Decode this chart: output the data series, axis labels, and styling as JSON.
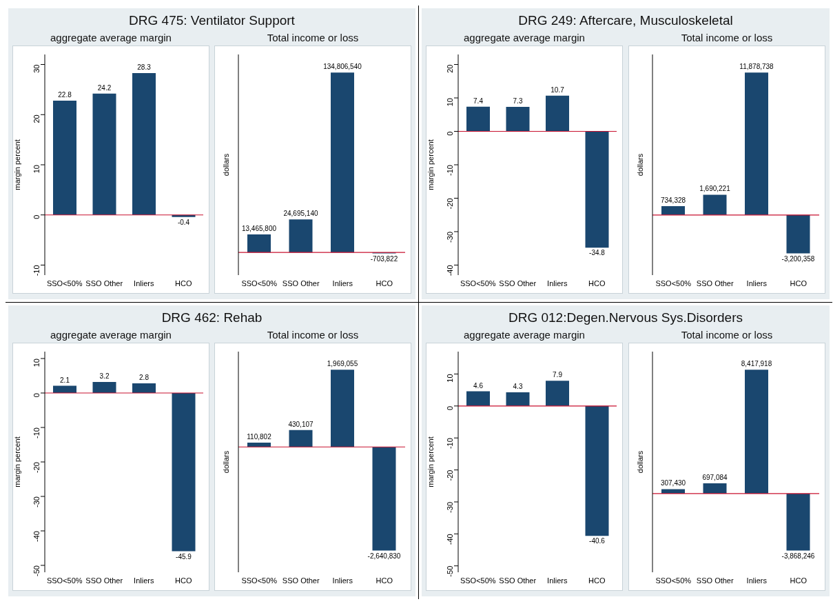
{
  "chart_data": [
    {
      "type": "bar",
      "title": "DRG 475: Ventilator Support",
      "subtitle": "aggregate average margin",
      "ylabel": "margin percent",
      "categories": [
        "SSO<50%",
        "SSO Other",
        "Inliers",
        "HCO"
      ],
      "values": [
        22.8,
        24.2,
        28.3,
        -0.4
      ],
      "color": "#1a476f",
      "ylim": [
        -12,
        32
      ],
      "yticks": [
        -10,
        0,
        10,
        20,
        30
      ],
      "data_labels": true,
      "ref_lines": [
        {
          "axis": "y",
          "value": 0,
          "color": "#c8102e"
        }
      ]
    },
    {
      "type": "bar",
      "title": "Total income or loss",
      "ylabel": "dollars",
      "categories": [
        "SSO<50%",
        "SSO Other",
        "Inliers",
        "HCO"
      ],
      "values": [
        13465800,
        24695140,
        134806540,
        -703822
      ],
      "value_labels": [
        "13,465,800",
        "24,695,140",
        "134,806,540",
        "-703,822"
      ],
      "color": "#1a476f",
      "tick_labels": "x",
      "ref_lines": [
        {
          "axis": "y",
          "value": 0,
          "color": "#c8102e"
        }
      ]
    },
    {
      "type": "bar",
      "title": "DRG 249: Aftercare, Musculoskeletal",
      "subtitle": "aggregate average margin",
      "ylabel": "margin percent",
      "categories": [
        "SSO<50%",
        "SSO Other",
        "Inliers",
        "HCO"
      ],
      "values": [
        7.4,
        7.3,
        10.7,
        -34.8
      ],
      "color": "#1a476f",
      "ylim": [
        -43,
        23
      ],
      "yticks": [
        -40,
        -30,
        -20,
        -10,
        0,
        10,
        20
      ],
      "data_labels": true,
      "ref_lines": [
        {
          "axis": "y",
          "value": 0,
          "color": "#c8102e"
        }
      ]
    },
    {
      "type": "bar",
      "title": "Total income or loss",
      "ylabel": "dollars",
      "categories": [
        "SSO<50%",
        "SSO Other",
        "Inliers",
        "HCO"
      ],
      "values": [
        734328,
        1690221,
        11878738,
        -3200358
      ],
      "value_labels": [
        "734,328",
        "1,690,221",
        "11,878,738",
        "-3,200,358"
      ],
      "color": "#1a476f",
      "tick_labels": "x",
      "ref_lines": [
        {
          "axis": "y",
          "value": 0,
          "color": "#c8102e"
        }
      ]
    },
    {
      "type": "bar",
      "title": "DRG 462: Rehab",
      "subtitle": "aggregate average margin",
      "ylabel": "margin percent",
      "categories": [
        "SSO<50%",
        "SSO Other",
        "Inliers",
        "HCO"
      ],
      "values": [
        2.1,
        3.2,
        2.8,
        -45.9
      ],
      "color": "#1a476f",
      "ylim": [
        -52,
        12
      ],
      "yticks": [
        -50,
        -40,
        -30,
        -20,
        -10,
        0,
        10
      ],
      "data_labels": true,
      "ref_lines": [
        {
          "axis": "y",
          "value": 0,
          "color": "#c8102e"
        }
      ]
    },
    {
      "type": "bar",
      "title": "Total income or loss",
      "ylabel": "dollars",
      "categories": [
        "SSO<50%",
        "SSO Other",
        "Inliers",
        "HCO"
      ],
      "values": [
        110802,
        430107,
        1969055,
        -2640830
      ],
      "value_labels": [
        "110,802",
        "430,107",
        "1,969,055",
        "-2,640,830"
      ],
      "color": "#1a476f",
      "tick_labels": "x",
      "ref_lines": [
        {
          "axis": "y",
          "value": 0,
          "color": "#c8102e"
        }
      ]
    },
    {
      "type": "bar",
      "title": "DRG 012:Degen.Nervous Sys.Disorders",
      "subtitle": "aggregate average margin",
      "ylabel": "margin percent",
      "categories": [
        "SSO<50%",
        "SSO Other",
        "Inliers",
        "HCO"
      ],
      "values": [
        4.6,
        4.3,
        7.9,
        -40.6
      ],
      "color": "#1a476f",
      "ylim": [
        -52,
        17
      ],
      "yticks": [
        -50,
        -40,
        -30,
        -20,
        -10,
        0,
        10
      ],
      "data_labels": true,
      "ref_lines": [
        {
          "axis": "y",
          "value": 0,
          "color": "#c8102e"
        }
      ]
    },
    {
      "type": "bar",
      "title": "Total income or loss",
      "ylabel": "dollars",
      "categories": [
        "SSO<50%",
        "SSO Other",
        "Inliers",
        "HCO"
      ],
      "values": [
        307430,
        697084,
        8417918,
        -3868246
      ],
      "value_labels": [
        "307,430",
        "697,084",
        "8,417,918",
        "-3,868,246"
      ],
      "color": "#1a476f",
      "tick_labels": "x",
      "ref_lines": [
        {
          "axis": "y",
          "value": 0,
          "color": "#c8102e"
        }
      ]
    }
  ]
}
